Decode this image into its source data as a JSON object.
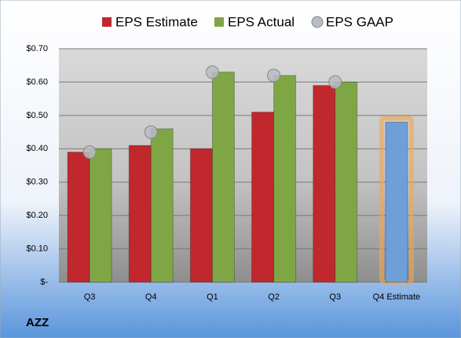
{
  "chart_data": {
    "type": "bar",
    "title": "AZZ",
    "categories": [
      "Q3",
      "Q4",
      "Q1",
      "Q2",
      "Q3",
      "Q4 Estimate"
    ],
    "series": [
      {
        "name": "EPS Estimate",
        "color": "#c0282d",
        "values": [
          0.39,
          0.41,
          0.4,
          0.51,
          0.59,
          null
        ]
      },
      {
        "name": "EPS Actual",
        "color": "#7fa645",
        "values": [
          0.4,
          0.46,
          0.63,
          0.62,
          0.6,
          null
        ]
      },
      {
        "name": "EPS GAAP",
        "color": "#b8bcc4",
        "marker": "circle",
        "values": [
          0.39,
          0.45,
          0.63,
          0.62,
          0.6,
          null
        ]
      }
    ],
    "highlight": {
      "value": 0.48,
      "color": "#6f9fd8",
      "glow": "#f3a64a"
    },
    "ylim": [
      0,
      0.7
    ],
    "yticks": [
      {
        "value": 0,
        "label": "$-"
      },
      {
        "value": 0.1,
        "label": "$0.10"
      },
      {
        "value": 0.2,
        "label": "$0.20"
      },
      {
        "value": 0.3,
        "label": "$0.30"
      },
      {
        "value": 0.4,
        "label": "$0.40"
      },
      {
        "value": 0.5,
        "label": "$0.50"
      },
      {
        "value": 0.6,
        "label": "$0.60"
      },
      {
        "value": 0.7,
        "label": "$0.70"
      }
    ],
    "grid": true
  }
}
